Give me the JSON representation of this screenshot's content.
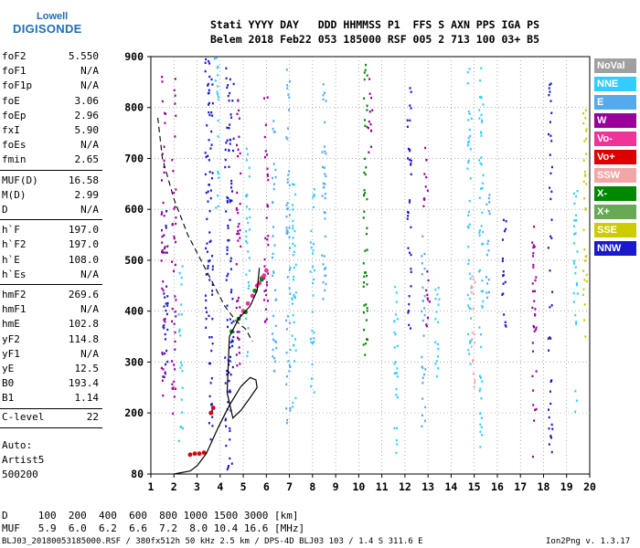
{
  "logo": {
    "line1": "Lowell",
    "line2": "DIGISONDE"
  },
  "header": {
    "row1": "Stati YYYY DAY   DDD HHMMSS P1  FFS S AXN PPS IGA PS",
    "row2": "Belem 2018 Feb22 053 185000 RSF 005 2 713 100 03+ B5"
  },
  "params": [
    {
      "name": "foF2",
      "value": "5.550"
    },
    {
      "name": "foF1",
      "value": "N/A"
    },
    {
      "name": "foF1p",
      "value": "N/A"
    },
    {
      "name": "foE",
      "value": "3.06"
    },
    {
      "name": "foEp",
      "value": "2.96"
    },
    {
      "name": "fxI",
      "value": "5.90"
    },
    {
      "name": "foEs",
      "value": "N/A"
    },
    {
      "name": "fmin",
      "value": "2.65"
    },
    {
      "name": "MUF(D)",
      "value": "16.58"
    },
    {
      "name": "M(D)",
      "value": "2.99"
    },
    {
      "name": "D",
      "value": "N/A"
    },
    {
      "name": "h`F",
      "value": "197.0"
    },
    {
      "name": "h`F2",
      "value": "197.0"
    },
    {
      "name": "h`E",
      "value": "108.0"
    },
    {
      "name": "h`Es",
      "value": "N/A"
    },
    {
      "name": "hmF2",
      "value": "269.6"
    },
    {
      "name": "hmF1",
      "value": "N/A"
    },
    {
      "name": "hmE",
      "value": "102.8"
    },
    {
      "name": "yF2",
      "value": "114.8"
    },
    {
      "name": "yF1",
      "value": "N/A"
    },
    {
      "name": "yE",
      "value": "12.5"
    },
    {
      "name": "B0",
      "value": "193.4"
    },
    {
      "name": "B1",
      "value": "1.14"
    },
    {
      "name": "C-level",
      "value": "22"
    }
  ],
  "autoscaling": {
    "line1": "Auto:",
    "line2": "Artist5",
    "line3": "500200"
  },
  "legend": [
    {
      "label": "NoVal",
      "color": "#a0a0a0"
    },
    {
      "label": "NNE",
      "color": "#33ccff"
    },
    {
      "label": "E",
      "color": "#55aaee"
    },
    {
      "label": "W",
      "color": "#990099"
    },
    {
      "label": "Vo-",
      "color": "#ee3399"
    },
    {
      "label": "Vo+",
      "color": "#dd0000"
    },
    {
      "label": "SSW",
      "color": "#f2a6a6"
    },
    {
      "label": "X-",
      "color": "#008800"
    },
    {
      "label": "X+",
      "color": "#66aa55"
    },
    {
      "label": "SSE",
      "color": "#cccc00"
    },
    {
      "label": "NNW",
      "color": "#1a1acc"
    }
  ],
  "bottom": {
    "d_line": "D     100  200  400  600  800 1000 1500 3000 [km]",
    "muf_line": "MUF   5.9  6.0  6.2  6.6  7.2  8.0 10.4 16.6 [MHz]",
    "footer_left": "BLJ03_20180053185000.RSF / 380fx512h 50 kHz 2.5 km / DPS-4D BLJ03 103 / 1.4 S 311.6 E",
    "footer_right": "Ion2Png v. 1.3.17"
  },
  "chart_data": {
    "type": "scatter",
    "x": {
      "min": 1,
      "max": 20,
      "ticks": [
        1,
        2,
        3,
        4,
        5,
        6,
        7,
        8,
        9,
        10,
        11,
        12,
        13,
        14,
        15,
        16,
        17,
        18,
        19,
        20
      ],
      "unit": "MHz"
    },
    "y": {
      "min": 80,
      "max": 900,
      "ticks": [
        80,
        200,
        300,
        400,
        500,
        600,
        700,
        800,
        900
      ],
      "unit": "km"
    },
    "grid": "dotted",
    "series": [
      {
        "name": "Vo-",
        "color": "#ee3399",
        "points": [
          [
            5.0,
            400
          ],
          [
            5.2,
            415
          ],
          [
            5.4,
            430
          ],
          [
            5.6,
            450
          ],
          [
            5.8,
            465
          ],
          [
            6.0,
            480
          ],
          [
            5.9,
            470
          ],
          [
            5.7,
            455
          ]
        ]
      },
      {
        "name": "Vo+",
        "color": "#dd0000",
        "points": [
          [
            2.7,
            118
          ],
          [
            2.9,
            120
          ],
          [
            3.1,
            120
          ],
          [
            3.3,
            122
          ],
          [
            3.6,
            200
          ],
          [
            3.7,
            210
          ]
        ]
      },
      {
        "name": "X-",
        "color": "#008800",
        "points": [
          [
            4.5,
            360
          ],
          [
            4.8,
            385
          ],
          [
            5.1,
            398
          ],
          [
            5.5,
            440
          ],
          [
            5.8,
            462
          ]
        ]
      }
    ],
    "profile_solid": [
      [
        2.0,
        80
      ],
      [
        2.7,
        86
      ],
      [
        3.0,
        96
      ],
      [
        3.4,
        120
      ],
      [
        3.9,
        170
      ],
      [
        4.4,
        215
      ],
      [
        4.9,
        252
      ],
      [
        5.3,
        269.6
      ],
      [
        5.55,
        265
      ],
      [
        5.6,
        250
      ],
      [
        5.3,
        230
      ],
      [
        4.9,
        205
      ],
      [
        4.55,
        190
      ],
      [
        4.3,
        240
      ],
      [
        4.4,
        350
      ],
      [
        4.8,
        385
      ],
      [
        5.3,
        410
      ],
      [
        5.6,
        440
      ],
      [
        5.7,
        485
      ]
    ],
    "profile_dashed": [
      [
        1.3,
        780
      ],
      [
        1.5,
        700
      ],
      [
        2.0,
        620
      ],
      [
        2.6,
        550
      ],
      [
        3.4,
        480
      ],
      [
        4.2,
        410
      ],
      [
        4.7,
        380
      ],
      [
        5.1,
        365
      ],
      [
        5.4,
        340
      ]
    ]
  }
}
